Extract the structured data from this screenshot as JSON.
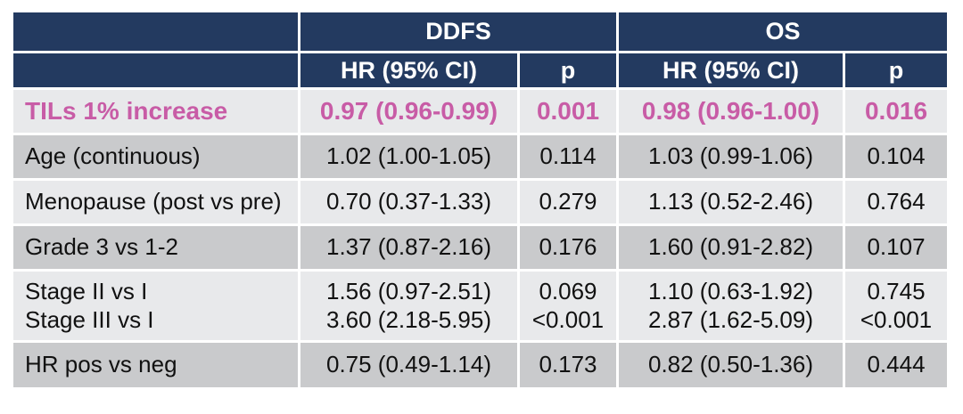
{
  "colors": {
    "header_navy": "#233A60",
    "accent_pink": "#C85CA6",
    "row_light": "#E8E9EB",
    "row_dark": "#C9CACC",
    "body_text": "#111111",
    "gap_white": "#FFFFFF"
  },
  "chart_data": {
    "type": "table",
    "column_groups": [
      {
        "label": "",
        "span": 1
      },
      {
        "label": "DDFS",
        "span": 2
      },
      {
        "label": "OS",
        "span": 2
      }
    ],
    "columns": [
      "",
      "HR (95% CI)",
      "p",
      "HR (95% CI)",
      "p"
    ],
    "rows": [
      {
        "label": "TILs 1% increase",
        "cells": [
          "0.97 (0.96-0.99)",
          "0.001",
          "0.98 (0.96-1.00)",
          "0.016"
        ],
        "highlight": true
      },
      {
        "label": "Age (continuous)",
        "cells": [
          "1.02 (1.00-1.05)",
          "0.114",
          "1.03 (0.99-1.06)",
          "0.104"
        ],
        "highlight": false
      },
      {
        "label": "Menopause (post vs pre)",
        "cells": [
          "0.70 (0.37-1.33)",
          "0.279",
          "1.13 (0.52-2.46)",
          "0.764"
        ],
        "highlight": false
      },
      {
        "label": "Grade 3 vs 1-2",
        "cells": [
          "1.37 (0.87-2.16)",
          "0.176",
          "1.60 (0.91-2.82)",
          "0.107"
        ],
        "highlight": false
      },
      {
        "label": "Stage II vs I\nStage III vs I",
        "cells": [
          "1.56 (0.97-2.51)\n3.60 (2.18-5.95)",
          "0.069\n<0.001",
          "1.10 (0.63-1.92)\n2.87 (1.62-5.09)",
          "0.745\n<0.001"
        ],
        "highlight": false
      },
      {
        "label": "HR pos vs neg",
        "cells": [
          "0.75 (0.49-1.14)",
          "0.173",
          "0.82 (0.50-1.36)",
          "0.444"
        ],
        "highlight": false
      }
    ]
  }
}
